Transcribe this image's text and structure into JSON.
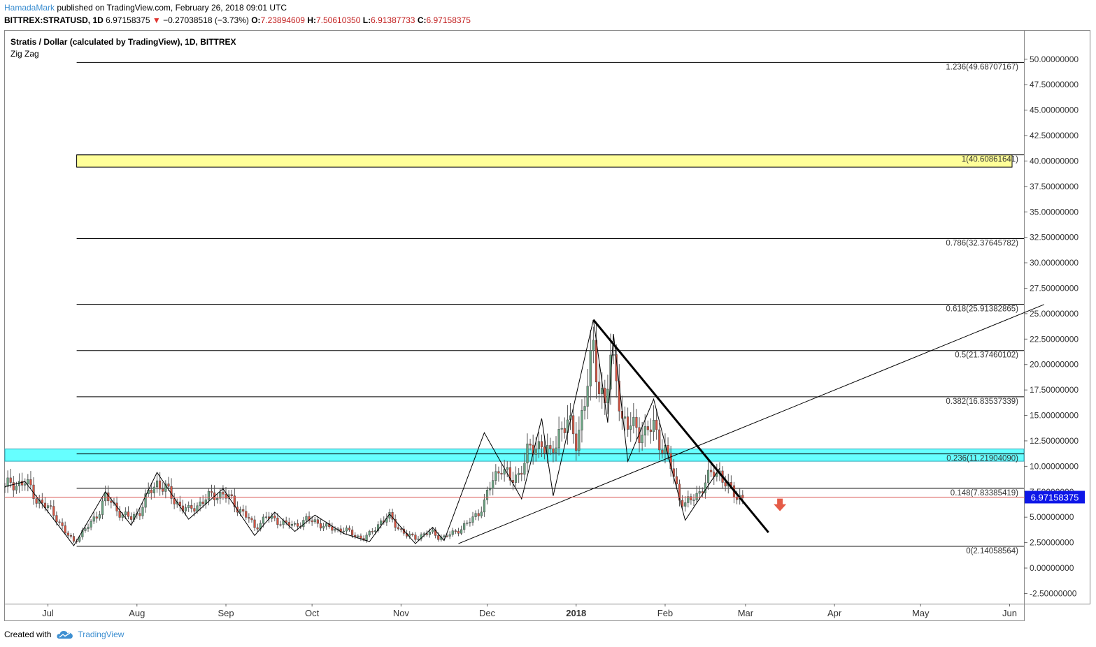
{
  "header": {
    "author": "HamadaMark",
    "published": "published on TradingView.com, February 26, 2018 09:01 UTC",
    "symbol": "BITTREX:STRATUSD, 1D",
    "last": "6.97158375",
    "change_arrow": "▼",
    "change": "−0.27038518 (−3.73%)",
    "o_label": "O:",
    "o_value": "7.23894609",
    "h_label": "H:",
    "h_value": "7.50610350",
    "l_label": "L:",
    "l_value": "6.91387733",
    "c_label": "C:",
    "c_value": "6.97158375"
  },
  "chart_data": {
    "type": "candlestick",
    "title": "Stratis / Dollar (calculated by TradingView), 1D, BITTREX",
    "indicator": "Zig Zag",
    "ylim": [
      -3.5,
      52.8
    ],
    "y_ticks": [
      "50.00000000",
      "47.50000000",
      "45.00000000",
      "42.50000000",
      "40.00000000",
      "37.50000000",
      "35.00000000",
      "32.50000000",
      "30.00000000",
      "27.50000000",
      "25.00000000",
      "22.50000000",
      "20.00000000",
      "17.50000000",
      "15.00000000",
      "12.50000000",
      "10.00000000",
      "7.50000000",
      "5.00000000",
      "2.50000000",
      "0.00000000",
      "-2.50000000"
    ],
    "x_ticks": [
      {
        "label": "Jul",
        "day": 0
      },
      {
        "label": "Aug",
        "day": 31
      },
      {
        "label": "Sep",
        "day": 62
      },
      {
        "label": "Oct",
        "day": 92
      },
      {
        "label": "Nov",
        "day": 123
      },
      {
        "label": "Dec",
        "day": 153
      },
      {
        "label": "2018",
        "day": 184,
        "bold": true
      },
      {
        "label": "Feb",
        "day": 215
      },
      {
        "label": "Mar",
        "day": 243
      },
      {
        "label": "Apr",
        "day": 274
      },
      {
        "label": "May",
        "day": 304
      },
      {
        "label": "Jun",
        "day": 335
      }
    ],
    "xlim_days": [
      -15,
      340
    ],
    "last_price": 6.97158375,
    "last_price_label": "6.97158375",
    "fib_levels": [
      {
        "ratio": "1.236",
        "price": 49.68707167,
        "label": "1.236(49.68707167)"
      },
      {
        "ratio": "1",
        "price": 40.60861641,
        "label": "1(40.60861641)"
      },
      {
        "ratio": "0.786",
        "price": 32.37645782,
        "label": "0.786(32.37645782)"
      },
      {
        "ratio": "0.618",
        "price": 25.91382865,
        "label": "0.618(25.91382865)"
      },
      {
        "ratio": "0.5",
        "price": 21.37460102,
        "label": "0.5(21.37460102)"
      },
      {
        "ratio": "0.382",
        "price": 16.83537339,
        "label": "0.382(16.83537339)"
      },
      {
        "ratio": "0.236",
        "price": 11.2190409,
        "label": "0.236(11.21904090)"
      },
      {
        "ratio": "0.148",
        "price": 7.83385419,
        "label": "0.148(7.83385419)"
      },
      {
        "ratio": "0",
        "price": 2.14058564,
        "label": "0(2.14058564)"
      }
    ],
    "fib_start_day": 10,
    "yellow_zone": {
      "from": 39.4,
      "to": 40.6
    },
    "cyan_zone": {
      "from": 10.5,
      "to": 11.7
    },
    "zigzag": [
      [
        -15,
        8.0
      ],
      [
        -8,
        8.5
      ],
      [
        9,
        2.2
      ],
      [
        20,
        7.5
      ],
      [
        29,
        4.2
      ],
      [
        38,
        9.4
      ],
      [
        49,
        4.8
      ],
      [
        61,
        7.8
      ],
      [
        72,
        3.2
      ],
      [
        79,
        5.5
      ],
      [
        86,
        3.6
      ],
      [
        93,
        5.2
      ],
      [
        103,
        3.4
      ],
      [
        112,
        2.6
      ],
      [
        119,
        5.3
      ],
      [
        128,
        2.4
      ],
      [
        134,
        4.0
      ],
      [
        138,
        2.7
      ],
      [
        152,
        13.3
      ],
      [
        165,
        6.8
      ],
      [
        172,
        14.7
      ],
      [
        176,
        7.1
      ],
      [
        190,
        24.4
      ],
      [
        195,
        14.3
      ],
      [
        197,
        23.0
      ],
      [
        202,
        10.5
      ],
      [
        211,
        16.6
      ],
      [
        217,
        10.0
      ],
      [
        222,
        4.7
      ],
      [
        234,
        9.8
      ]
    ],
    "ohlc_path": [
      [
        -15,
        8.0
      ],
      [
        -8,
        8.5
      ],
      [
        -4,
        6.8
      ],
      [
        0,
        5.9
      ],
      [
        3,
        5.0
      ],
      [
        6,
        3.5
      ],
      [
        9,
        2.6
      ],
      [
        12,
        3.5
      ],
      [
        15,
        4.4
      ],
      [
        18,
        5.7
      ],
      [
        20,
        7.0
      ],
      [
        23,
        6.1
      ],
      [
        26,
        5.2
      ],
      [
        29,
        4.9
      ],
      [
        32,
        5.6
      ],
      [
        35,
        7.3
      ],
      [
        38,
        8.4
      ],
      [
        41,
        7.8
      ],
      [
        44,
        6.6
      ],
      [
        47,
        6.0
      ],
      [
        49,
        5.6
      ],
      [
        52,
        6.2
      ],
      [
        55,
        6.8
      ],
      [
        58,
        7.2
      ],
      [
        61,
        7.3
      ],
      [
        64,
        6.6
      ],
      [
        67,
        5.7
      ],
      [
        70,
        4.8
      ],
      [
        72,
        4.0
      ],
      [
        76,
        5.0
      ],
      [
        79,
        4.8
      ],
      [
        83,
        4.3
      ],
      [
        86,
        4.2
      ],
      [
        90,
        4.7
      ],
      [
        93,
        4.6
      ],
      [
        97,
        4.0
      ],
      [
        100,
        3.8
      ],
      [
        103,
        3.8
      ],
      [
        107,
        3.2
      ],
      [
        110,
        2.9
      ],
      [
        112,
        3.3
      ],
      [
        116,
        4.6
      ],
      [
        119,
        5.0
      ],
      [
        122,
        4.0
      ],
      [
        125,
        3.2
      ],
      [
        128,
        3.0
      ],
      [
        131,
        3.3
      ],
      [
        134,
        3.5
      ],
      [
        136,
        3.1
      ],
      [
        138,
        3.0
      ],
      [
        142,
        3.6
      ],
      [
        146,
        4.3
      ],
      [
        150,
        5.5
      ],
      [
        152,
        6.4
      ],
      [
        155,
        8.7
      ],
      [
        158,
        10.1
      ],
      [
        161,
        8.5
      ],
      [
        164,
        9.3
      ],
      [
        167,
        11.2
      ],
      [
        170,
        12.0
      ],
      [
        172,
        12.4
      ],
      [
        175,
        10.8
      ],
      [
        178,
        13.5
      ],
      [
        181,
        14.2
      ],
      [
        184,
        12.6
      ],
      [
        187,
        16.3
      ],
      [
        190,
        21.5
      ],
      [
        192,
        18.2
      ],
      [
        194,
        16.0
      ],
      [
        196,
        20.0
      ],
      [
        198,
        19.4
      ],
      [
        200,
        14.5
      ],
      [
        202,
        13.8
      ],
      [
        205,
        14.0
      ],
      [
        208,
        13.0
      ],
      [
        211,
        14.0
      ],
      [
        214,
        12.0
      ],
      [
        217,
        10.0
      ],
      [
        220,
        7.0
      ],
      [
        222,
        6.2
      ],
      [
        226,
        7.2
      ],
      [
        229,
        8.4
      ],
      [
        232,
        9.5
      ],
      [
        234,
        9.4
      ],
      [
        237,
        7.8
      ],
      [
        240,
        7.1
      ],
      [
        242,
        6.97
      ]
    ],
    "rising_trendline": [
      [
        143,
        2.4
      ],
      [
        347,
        25.9
      ]
    ],
    "falling_trendline": [
      [
        190,
        24.4
      ],
      [
        251,
        3.5
      ]
    ],
    "arrow_down": {
      "day": 255,
      "price": 6.0
    }
  },
  "footer": {
    "created_with": "Created with",
    "brand": "TradingView"
  },
  "colors": {
    "up": "#6ba583",
    "down": "#d75442",
    "price_tag": "#0e17e8",
    "fib_line": "#000000",
    "yellow_zone": "#ffff99",
    "cyan_zone": "#66ffff",
    "last_price_line": "#d9534f",
    "brand": "#3d8fd1"
  }
}
